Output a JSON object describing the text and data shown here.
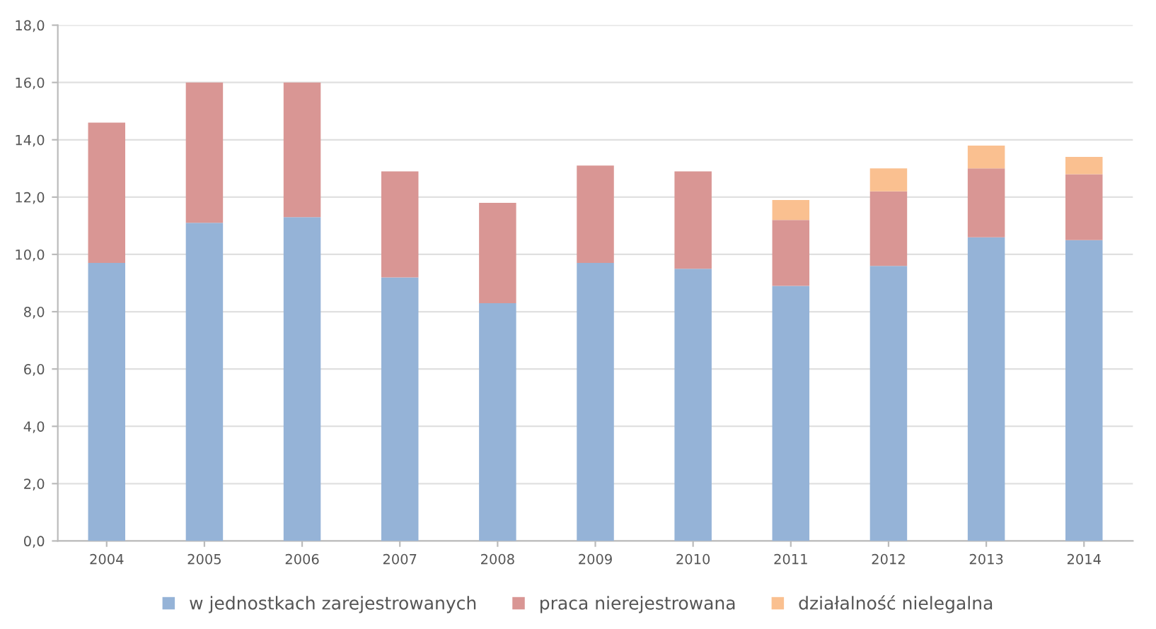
{
  "chart_data": {
    "type": "bar",
    "stacked": true,
    "categories": [
      "2004",
      "2005",
      "2006",
      "2007",
      "2008",
      "2009",
      "2010",
      "2011",
      "2012",
      "2013",
      "2014"
    ],
    "series": [
      {
        "name": "w jednostkach zarejestrowanych",
        "color": "#95b3d7",
        "values": [
          9.7,
          11.1,
          11.3,
          9.2,
          8.3,
          9.7,
          9.5,
          8.9,
          9.6,
          10.6,
          10.5
        ]
      },
      {
        "name": "praca nierejestrowana",
        "color": "#d99694",
        "values": [
          4.9,
          4.9,
          4.7,
          3.7,
          3.5,
          3.4,
          3.4,
          2.3,
          2.6,
          2.4,
          2.3
        ]
      },
      {
        "name": "działalność nielegalna",
        "color": "#fac090",
        "values": [
          0,
          0,
          0,
          0,
          0,
          0,
          0,
          0.7,
          0.8,
          0.8,
          0.6
        ]
      }
    ],
    "ylim": [
      0,
      18
    ],
    "yticks": [
      {
        "value": 0,
        "label": "0,0"
      },
      {
        "value": 2,
        "label": "2,0"
      },
      {
        "value": 4,
        "label": "4,0"
      },
      {
        "value": 6,
        "label": "6,0"
      },
      {
        "value": 8,
        "label": "8,0"
      },
      {
        "value": 10,
        "label": "10,0"
      },
      {
        "value": 12,
        "label": "12,0"
      },
      {
        "value": 14,
        "label": "14,0"
      },
      {
        "value": 16,
        "label": "16,0"
      },
      {
        "value": 18,
        "label": "18,0"
      }
    ],
    "grid": "y",
    "legend": "bottom"
  }
}
